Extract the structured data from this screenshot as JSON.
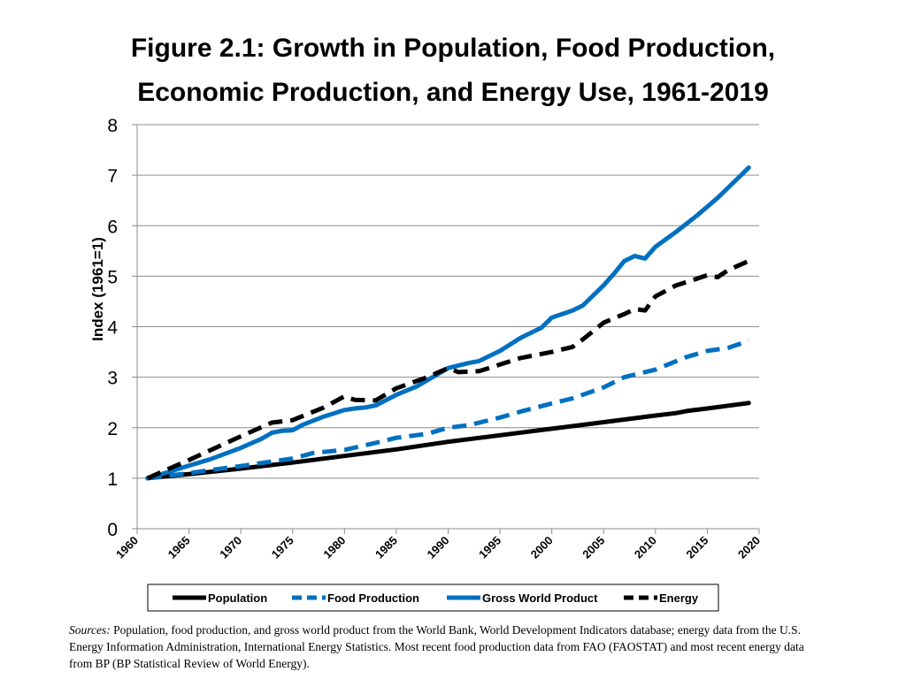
{
  "title": {
    "line1": "Figure 2.1: Growth in Population, Food Production,",
    "line2": "Economic Production, and Energy Use, 1961-2019"
  },
  "sources": {
    "label": "Sources:",
    "text": "Population, food production, and gross world product from the World Bank, World Development Indicators database; energy data from the U.S. Energy Information Administration, International Energy Statistics. Most recent food production data from FAO (FAOSTAT) and most recent energy data from BP (BP Statistical Review of World Energy)."
  },
  "chart_data": {
    "type": "line",
    "title": "Figure 2.1: Growth in Population, Food Production, Economic Production, and Energy Use, 1961-2019",
    "xlabel": "",
    "ylabel": "Index (1961=1)",
    "xlim": [
      1960,
      2020
    ],
    "ylim": [
      0,
      8
    ],
    "xticks": [
      "1960",
      "1965",
      "1970",
      "1975",
      "1980",
      "1985",
      "1990",
      "1995",
      "2000",
      "2005",
      "2010",
      "2015",
      "2020"
    ],
    "yticks": [
      "0",
      "1",
      "2",
      "3",
      "4",
      "5",
      "6",
      "7",
      "8"
    ],
    "grid": true,
    "legend_position": "bottom",
    "series": [
      {
        "name": "Population",
        "color": "#000000",
        "dash": "solid",
        "x": [
          1961,
          1965,
          1970,
          1975,
          1980,
          1985,
          1990,
          1995,
          2000,
          2005,
          2010,
          2012,
          2013,
          2015,
          2019
        ],
        "y": [
          1.0,
          1.08,
          1.19,
          1.31,
          1.44,
          1.57,
          1.72,
          1.85,
          1.98,
          2.11,
          2.24,
          2.29,
          2.33,
          2.38,
          2.49
        ]
      },
      {
        "name": "Food Production",
        "color": "#0070C0",
        "dash": "dashed",
        "x": [
          1961,
          1963,
          1965,
          1967,
          1970,
          1972,
          1975,
          1977,
          1980,
          1983,
          1985,
          1988,
          1990,
          1992,
          1995,
          1997,
          2000,
          2002,
          2005,
          2007,
          2010,
          2013,
          2015,
          2017,
          2019
        ],
        "y": [
          1.0,
          1.05,
          1.1,
          1.16,
          1.24,
          1.3,
          1.39,
          1.5,
          1.56,
          1.7,
          1.8,
          1.88,
          2.0,
          2.05,
          2.2,
          2.32,
          2.48,
          2.58,
          2.8,
          3.0,
          3.15,
          3.4,
          3.52,
          3.58,
          3.72
        ]
      },
      {
        "name": "Gross World Product",
        "color": "#0070C0",
        "dash": "solid",
        "x": [
          1961,
          1963,
          1965,
          1967,
          1970,
          1972,
          1973,
          1974,
          1975,
          1976,
          1978,
          1980,
          1981,
          1982,
          1983,
          1985,
          1987,
          1990,
          1992,
          1993,
          1995,
          1997,
          1999,
          2000,
          2002,
          2003,
          2005,
          2006,
          2007,
          2008,
          2009,
          2010,
          2012,
          2014,
          2016,
          2018,
          2019
        ],
        "y": [
          1.0,
          1.12,
          1.25,
          1.37,
          1.6,
          1.78,
          1.9,
          1.94,
          1.95,
          2.06,
          2.22,
          2.35,
          2.38,
          2.4,
          2.44,
          2.65,
          2.82,
          3.18,
          3.28,
          3.32,
          3.52,
          3.78,
          3.98,
          4.18,
          4.32,
          4.42,
          4.82,
          5.05,
          5.3,
          5.4,
          5.35,
          5.58,
          5.88,
          6.2,
          6.55,
          6.95,
          7.15
        ]
      },
      {
        "name": "Energy",
        "color": "#000000",
        "dash": "dashed",
        "x": [
          1961,
          1965,
          1970,
          1973,
          1975,
          1978,
          1980,
          1981,
          1983,
          1985,
          1988,
          1990,
          1991,
          1993,
          1995,
          1997,
          2000,
          2002,
          2003,
          2005,
          2007,
          2008,
          2009,
          2010,
          2012,
          2014,
          2015,
          2016,
          2017,
          2019
        ],
        "y": [
          1.0,
          1.36,
          1.83,
          2.1,
          2.15,
          2.4,
          2.62,
          2.55,
          2.54,
          2.78,
          3.0,
          3.18,
          3.1,
          3.12,
          3.25,
          3.38,
          3.5,
          3.6,
          3.75,
          4.08,
          4.25,
          4.35,
          4.32,
          4.6,
          4.82,
          4.95,
          5.02,
          4.98,
          5.12,
          5.3
        ]
      }
    ]
  }
}
